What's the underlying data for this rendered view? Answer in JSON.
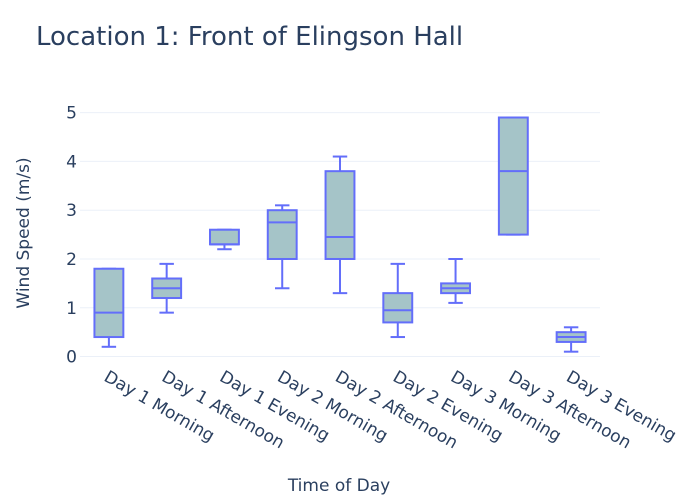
{
  "chart_data": {
    "type": "box",
    "title": "Location 1: Front of Elingson Hall",
    "xlabel": "Time of Day",
    "ylabel": "Wind Speed (m/s)",
    "ylim": [
      -0.05,
      5.3
    ],
    "yticks": [
      "0",
      "1",
      "2",
      "3",
      "4",
      "5"
    ],
    "grid": true,
    "colors": {
      "line": "#636efa",
      "fill": "#a5c4c8",
      "grid": "#ebf0f8",
      "text": "#2a3f5f"
    },
    "categories": [
      "Day 1 Morning",
      "Day 1 Afternoon",
      "Day 1 Evening",
      "Day 2 Morning",
      "Day 2 Afternoon",
      "Day 2 Evening",
      "Day 3 Morning",
      "Day 3 Afternoon",
      "Day 3 Evening"
    ],
    "boxes": [
      {
        "min": 0.2,
        "q1": 0.4,
        "median": 0.9,
        "q3": 1.8,
        "max": 1.8
      },
      {
        "min": 0.9,
        "q1": 1.2,
        "median": 1.4,
        "q3": 1.6,
        "max": 1.9
      },
      {
        "min": 2.2,
        "q1": 2.3,
        "median": 2.3,
        "q3": 2.6,
        "max": 2.6
      },
      {
        "min": 1.4,
        "q1": 2.0,
        "median": 2.75,
        "q3": 3.0,
        "max": 3.1
      },
      {
        "min": 1.3,
        "q1": 2.0,
        "median": 2.45,
        "q3": 3.8,
        "max": 4.1
      },
      {
        "min": 0.4,
        "q1": 0.7,
        "median": 0.95,
        "q3": 1.3,
        "max": 1.9
      },
      {
        "min": 1.1,
        "q1": 1.3,
        "median": 1.4,
        "q3": 1.5,
        "max": 2.0
      },
      {
        "min": 2.5,
        "q1": 2.5,
        "median": 3.8,
        "q3": 4.9,
        "max": 4.9
      },
      {
        "min": 0.1,
        "q1": 0.3,
        "median": 0.4,
        "q3": 0.5,
        "max": 0.6
      }
    ]
  }
}
